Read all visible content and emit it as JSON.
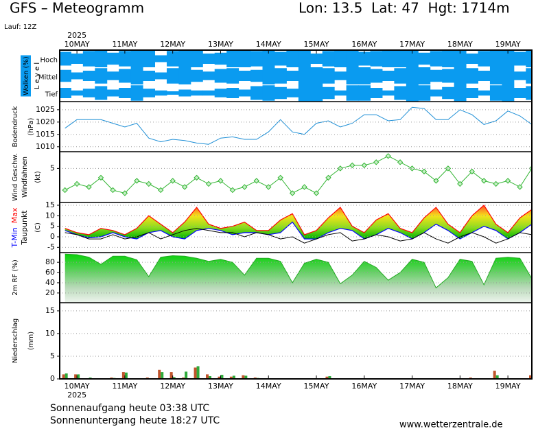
{
  "header": {
    "title": "GFS – Meteogramm",
    "location": "Lon: 13.5  Lat: 47  Hgt: 1714m",
    "run": "Lauf: 12Z"
  },
  "time_axis": {
    "year": "2025",
    "xlim": [
      -0.36,
      9.5
    ],
    "xticks": [
      {
        "value": 0,
        "label": "10MAY"
      },
      {
        "value": 1,
        "label": "11MAY"
      },
      {
        "value": 2,
        "label": "12MAY"
      },
      {
        "value": 3,
        "label": "13MAY"
      },
      {
        "value": 4,
        "label": "14MAY"
      },
      {
        "value": 5,
        "label": "15MAY"
      },
      {
        "value": 6,
        "label": "16MAY"
      },
      {
        "value": 7,
        "label": "17MAY"
      },
      {
        "value": 8,
        "label": "18MAY"
      },
      {
        "value": 9,
        "label": "19MAY"
      }
    ]
  },
  "chart_data": [
    {
      "type": "clouds",
      "ylabel": "Wolken (%)",
      "ylabel2": "L e v e l",
      "x": [
        -0.25,
        0,
        0.25,
        0.5,
        0.75,
        1,
        1.25,
        1.5,
        1.75,
        2,
        2.25,
        2.5,
        2.75,
        3,
        3.25,
        3.5,
        3.75,
        4,
        4.25,
        4.5,
        4.75,
        5,
        5.25,
        5.5,
        5.75,
        6,
        6.25,
        6.5,
        6.75,
        7,
        7.25,
        7.5,
        7.75,
        8,
        8.25,
        8.5,
        8.75,
        9,
        9.25,
        9.5
      ],
      "series": [
        {
          "name": "Hoch",
          "color": "#0a9bf0",
          "values": [
            80,
            60,
            90,
            100,
            70,
            90,
            100,
            100,
            40,
            90,
            100,
            100,
            60,
            70,
            100,
            100,
            90,
            100,
            80,
            100,
            100,
            60,
            90,
            100,
            100,
            80,
            90,
            100,
            100,
            100,
            70,
            90,
            100,
            100,
            60,
            90,
            100,
            100,
            80,
            100
          ]
        },
        {
          "name": "Mittel",
          "color": "#0a9bf0",
          "values": [
            70,
            40,
            60,
            90,
            50,
            80,
            100,
            60,
            40,
            90,
            100,
            70,
            50,
            80,
            90,
            60,
            70,
            100,
            90,
            60,
            100,
            100,
            90,
            50,
            100,
            100,
            80,
            60,
            90,
            100,
            100,
            70,
            80,
            100,
            90,
            60,
            100,
            100,
            50,
            90
          ]
        },
        {
          "name": "Tief",
          "color": "#0a9bf0",
          "values": [
            60,
            30,
            50,
            80,
            40,
            60,
            90,
            50,
            30,
            20,
            40,
            30,
            30,
            50,
            60,
            40,
            80,
            90,
            70,
            50,
            100,
            100,
            70,
            30,
            90,
            90,
            60,
            30,
            80,
            100,
            90,
            40,
            70,
            100,
            60,
            30,
            90,
            100,
            60,
            80
          ]
        }
      ]
    },
    {
      "type": "line",
      "ylabel": "Bodendruck",
      "yunit": "(hPa)",
      "color": "#1e8fd6",
      "ylim": [
        1008,
        1028.3
      ],
      "yticks": [
        1010,
        1015,
        1020,
        1025
      ],
      "x": [
        -0.25,
        0,
        0.25,
        0.5,
        0.75,
        1,
        1.25,
        1.5,
        1.75,
        2,
        2.25,
        2.5,
        2.75,
        3,
        3.25,
        3.5,
        3.75,
        4,
        4.25,
        4.5,
        4.75,
        5,
        5.25,
        5.5,
        5.75,
        6,
        6.25,
        6.5,
        6.75,
        7,
        7.25,
        7.5,
        7.75,
        8,
        8.25,
        8.5,
        8.75,
        9,
        9.25,
        9.5
      ],
      "values": [
        1017.5,
        1021,
        1021,
        1021,
        1019.5,
        1018,
        1019.5,
        1013.5,
        1012,
        1013,
        1012.5,
        1011.5,
        1011,
        1013.5,
        1014,
        1013,
        1013,
        1016,
        1021,
        1016,
        1015,
        1019.5,
        1020.5,
        1018,
        1019.5,
        1023,
        1023,
        1020.5,
        1021,
        1026,
        1025.5,
        1021,
        1021,
        1025,
        1023,
        1019,
        1020.5,
        1024.5,
        1022.5,
        1019
      ]
    },
    {
      "type": "line",
      "ylabel": "Wind Geschw.",
      "ylabel2": "Windfahnen",
      "yunit": "(kt)",
      "color": "#32b432",
      "markers": true,
      "ylim": [
        -0.5,
        7.7
      ],
      "yticks": [
        5
      ],
      "x": [
        -0.25,
        0,
        0.25,
        0.5,
        0.75,
        1,
        1.25,
        1.5,
        1.75,
        2,
        2.25,
        2.5,
        2.75,
        3,
        3.25,
        3.5,
        3.75,
        4,
        4.25,
        4.5,
        4.75,
        5,
        5.25,
        5.5,
        5.75,
        6,
        6.25,
        6.5,
        6.75,
        7,
        7.25,
        7.5,
        7.75,
        8,
        8.25,
        8.5,
        8.75,
        9,
        9.25,
        9.5
      ],
      "values": [
        1.5,
        2.5,
        2,
        3.5,
        1.5,
        1,
        3,
        2.5,
        1.5,
        3,
        2,
        3.5,
        2.5,
        3,
        1.5,
        2,
        3,
        2,
        3.5,
        1,
        2,
        1,
        3.5,
        5,
        5.5,
        5.5,
        6,
        7,
        6,
        5,
        4.5,
        3,
        5,
        2.5,
        4.5,
        3,
        2.5,
        3,
        2,
        5
      ]
    },
    {
      "type": "band",
      "yunit": "(C)",
      "ylim": [
        -7.5,
        16.3
      ],
      "yticks": [
        -5,
        0,
        5,
        10,
        15
      ],
      "x": [
        -0.25,
        0,
        0.25,
        0.5,
        0.75,
        1,
        1.25,
        1.5,
        1.75,
        2,
        2.25,
        2.5,
        2.75,
        3,
        3.25,
        3.5,
        3.75,
        4,
        4.25,
        4.5,
        4.75,
        5,
        5.25,
        5.5,
        5.75,
        6,
        6.25,
        6.5,
        6.75,
        7,
        7.25,
        7.5,
        7.75,
        8,
        8.25,
        8.5,
        8.75,
        9,
        9.25,
        9.5
      ],
      "series": [
        {
          "name": "T-Min",
          "color": "#0000ff",
          "values": [
            3,
            1,
            -0.5,
            0,
            2,
            0,
            -1,
            2,
            3,
            0,
            -1,
            3,
            4,
            3,
            1,
            2,
            2,
            1,
            2,
            7,
            -1,
            -1,
            2,
            4,
            3,
            -1,
            1,
            4,
            2,
            -1,
            2,
            6,
            3,
            -1,
            2,
            5,
            3,
            -1,
            2,
            6
          ]
        },
        {
          "name": "Max",
          "color": "#ff0000",
          "values": [
            4,
            2,
            1,
            4,
            3,
            1,
            4,
            10,
            6,
            2,
            7,
            14,
            6,
            4,
            5,
            7,
            3,
            3,
            8,
            11,
            1,
            3,
            9,
            14,
            5,
            2,
            8,
            11,
            4,
            2,
            9,
            14,
            6,
            2,
            10,
            15,
            6,
            2,
            9,
            13
          ]
        },
        {
          "name": "Taupunkt",
          "color": "#000000",
          "values": [
            2,
            1,
            -1,
            -1,
            1,
            -1,
            0,
            2,
            -1,
            1,
            3,
            4,
            3,
            2,
            2,
            0,
            2,
            1,
            -1,
            0,
            -3,
            -1,
            1,
            2,
            -2,
            -1,
            1,
            0,
            -2,
            -1,
            2,
            -1,
            -3,
            0,
            2,
            0,
            -3,
            -1,
            2,
            1
          ]
        }
      ]
    },
    {
      "type": "area",
      "ylabel": "2m RF (%)",
      "color": "#22aa22",
      "ylim": [
        1,
        99
      ],
      "yticks": [
        20,
        40,
        60,
        80
      ],
      "x": [
        -0.25,
        0,
        0.25,
        0.5,
        0.75,
        1,
        1.25,
        1.5,
        1.75,
        2,
        2.25,
        2.5,
        2.75,
        3,
        3.25,
        3.5,
        3.75,
        4,
        4.25,
        4.5,
        4.75,
        5,
        5.25,
        5.5,
        5.75,
        6,
        6.25,
        6.5,
        6.75,
        7,
        7.25,
        7.5,
        7.75,
        8,
        8.25,
        8.5,
        8.75,
        9,
        9.25,
        9.5
      ],
      "values": [
        96,
        95,
        90,
        76,
        92,
        92,
        85,
        52,
        90,
        93,
        92,
        88,
        82,
        86,
        80,
        55,
        88,
        88,
        82,
        40,
        78,
        86,
        80,
        38,
        55,
        82,
        70,
        45,
        60,
        86,
        80,
        30,
        50,
        86,
        82,
        36,
        88,
        90,
        88,
        48
      ]
    },
    {
      "type": "bar",
      "ylabel": "Niederschlag",
      "yunit": "(mm)",
      "ylim": [
        0,
        16.8
      ],
      "yticks": [
        0,
        5,
        10,
        15
      ],
      "x": [
        -0.25,
        0,
        0.25,
        0.5,
        0.75,
        1,
        1.25,
        1.5,
        1.75,
        2,
        2.25,
        2.5,
        2.75,
        3,
        3.25,
        3.5,
        3.75,
        4,
        4.25,
        4.5,
        4.75,
        5,
        5.25,
        5.5,
        5.75,
        6,
        6.25,
        6.5,
        6.75,
        7,
        7.25,
        7.5,
        7.75,
        8,
        8.25,
        8.5,
        8.75,
        9,
        9.25,
        9.5
      ],
      "series": [
        {
          "color": "#c0542c",
          "values": [
            1,
            1,
            0,
            0,
            0.3,
            1.5,
            0,
            0.3,
            2,
            1.5,
            0.3,
            2.5,
            1,
            0.5,
            0.5,
            0.8,
            0.3,
            0,
            0,
            0,
            0,
            0,
            0.5,
            0,
            0,
            0,
            0,
            0,
            0,
            0,
            0,
            0,
            0,
            0,
            0.3,
            0,
            1.8,
            0,
            0,
            0.8
          ]
        },
        {
          "color": "#2eaa3a",
          "values": [
            1.2,
            1,
            0.3,
            0,
            0.2,
            1.4,
            0.1,
            0,
            1.5,
            0.4,
            1.6,
            2.8,
            0.6,
            0.9,
            0.7,
            0.7,
            0.2,
            0,
            0,
            0,
            0,
            0,
            0.6,
            0,
            0,
            0,
            0,
            0,
            0,
            0,
            0,
            0,
            0,
            0,
            0,
            0,
            0.8,
            0,
            0,
            0
          ]
        }
      ]
    }
  ],
  "footer": {
    "sunrise": "Sonnenaufgang heute 03:38 UTC",
    "sunset": "Sonnenuntergang heute 18:27 UTC",
    "source": "www.wetterzentrale.de"
  }
}
